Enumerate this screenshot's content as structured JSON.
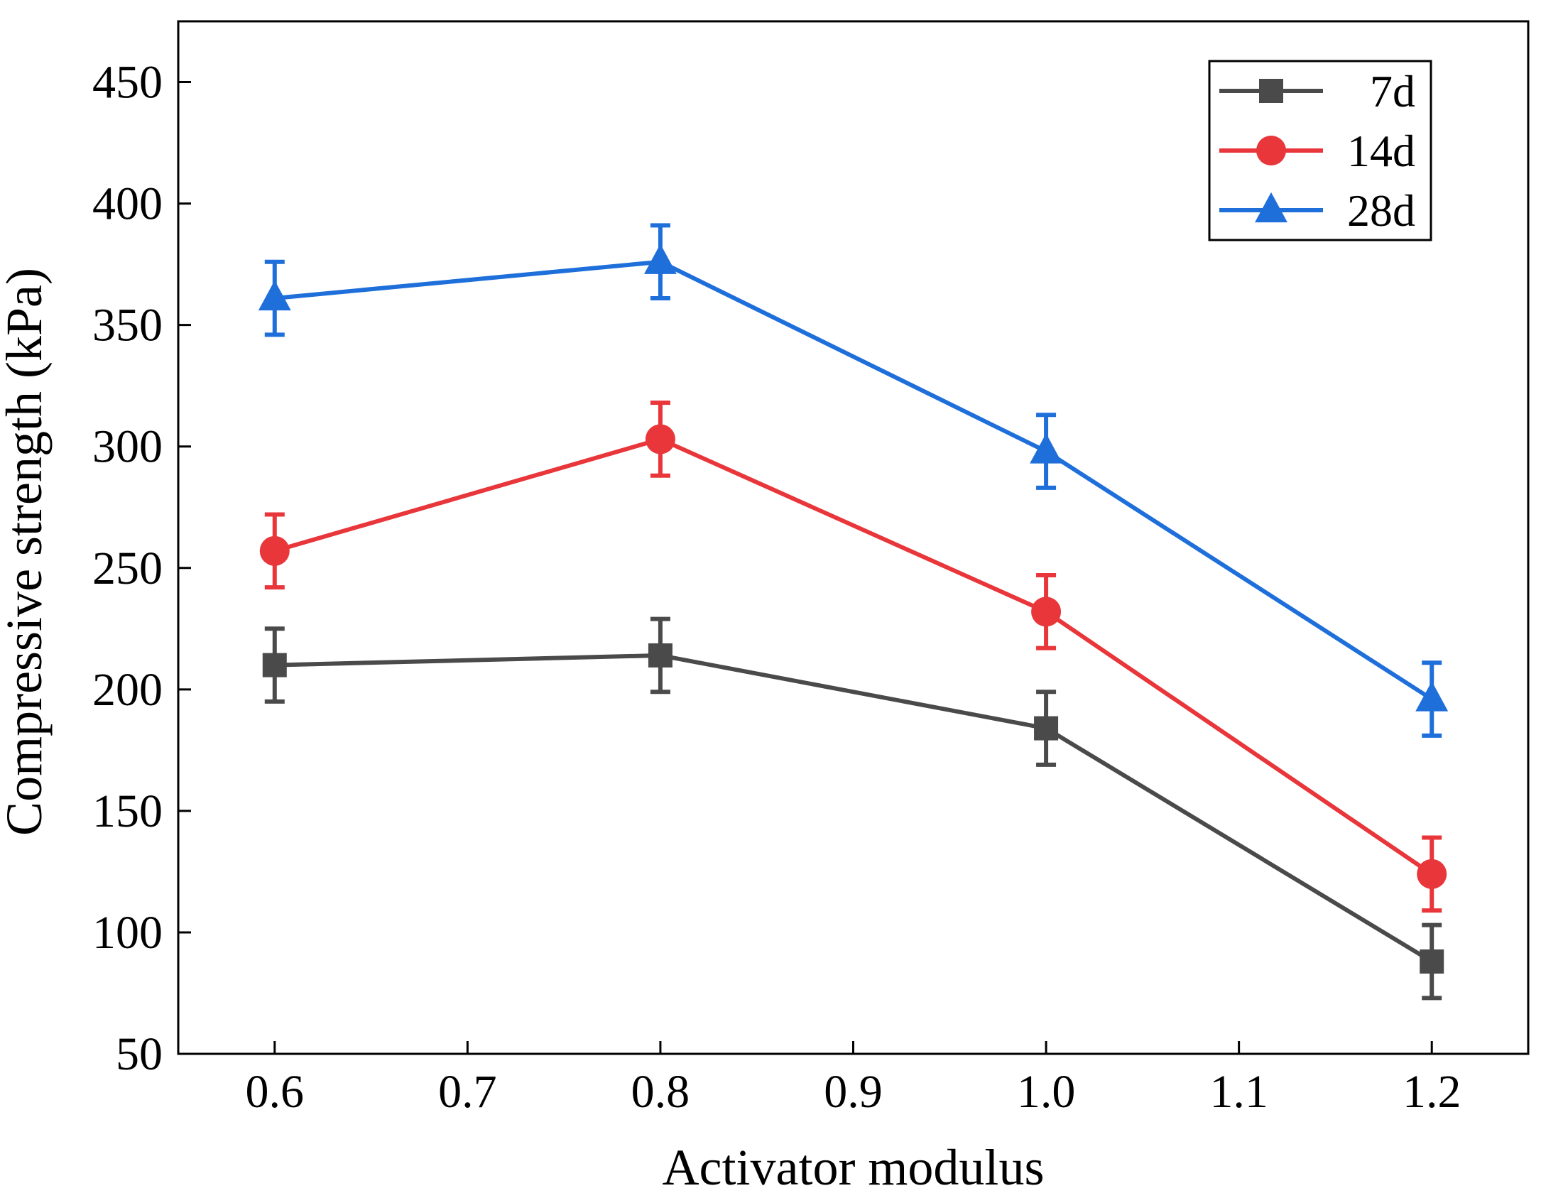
{
  "chart_data": {
    "type": "line",
    "title": "",
    "xlabel": "Activator modulus",
    "ylabel": "Compressive strength (kPa)",
    "xlim": [
      0.55,
      1.25
    ],
    "ylim": [
      50,
      475
    ],
    "x": [
      0.6,
      0.8,
      1.0,
      1.2
    ],
    "xticks": [
      0.6,
      0.7,
      0.8,
      0.9,
      1.0,
      1.1,
      1.2
    ],
    "xtick_labels": [
      "0.6",
      "0.7",
      "0.8",
      "0.9",
      "1.0",
      "1.1",
      "1.2"
    ],
    "yticks": [
      50,
      100,
      150,
      200,
      250,
      300,
      350,
      400,
      450
    ],
    "ytick_labels": [
      "50",
      "100",
      "150",
      "200",
      "250",
      "300",
      "350",
      "400",
      "450"
    ],
    "grid": false,
    "legend_position": "top-right",
    "series": [
      {
        "name": "7d",
        "color": "#4a4a4a",
        "marker": "square",
        "values": [
          210,
          214,
          184,
          88
        ],
        "errors": [
          15,
          15,
          15,
          15
        ]
      },
      {
        "name": "14d",
        "color": "#e8363a",
        "marker": "circle",
        "values": [
          257,
          303,
          232,
          124
        ],
        "errors": [
          15,
          15,
          15,
          15
        ]
      },
      {
        "name": "28d",
        "color": "#1f6fdb",
        "marker": "triangle",
        "values": [
          361,
          376,
          298,
          196
        ],
        "errors": [
          15,
          15,
          15,
          15
        ]
      }
    ]
  }
}
